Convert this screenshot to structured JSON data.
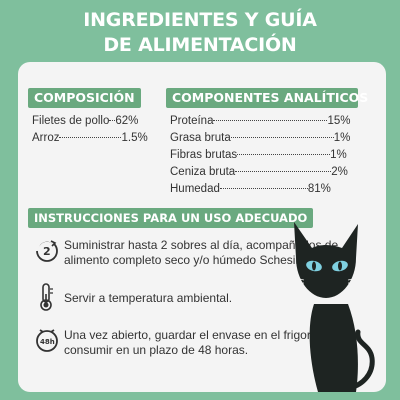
{
  "header": {
    "title_line1": "INGREDIENTES Y GUÍA",
    "title_line2": "DE ALIMENTACIÓN"
  },
  "composition": {
    "heading": "COMPOSICIÓN",
    "items": [
      {
        "name": "Filetes de pollo",
        "value": "62%"
      },
      {
        "name": "Arroz",
        "value": "1.5%"
      }
    ]
  },
  "analytical": {
    "heading": "COMPONENTES ANALÍTICOS",
    "items": [
      {
        "name": "Proteína",
        "value": "15%"
      },
      {
        "name": "Grasa bruta",
        "value": "1%"
      },
      {
        "name": "Fibras brutas",
        "value": "1%"
      },
      {
        "name": "Ceniza bruta",
        "value": "2%"
      },
      {
        "name": "Humedad",
        "value": "81%"
      }
    ]
  },
  "instructions": {
    "heading": "INSTRUCCIONES PARA UN USO ADECUADO",
    "items": [
      {
        "icon": "two-per-day-icon",
        "text": "Suministrar hasta 2 sobres al día, acompañados de alimento completo seco y/o húmedo Schesir."
      },
      {
        "icon": "thermometer-icon",
        "text": "Servir a temperatura ambiental."
      },
      {
        "icon": "48-hour-clock-icon",
        "text": "Una vez abierto, guardar el envase en el frigorífico y consumir en un plazo de 48 horas."
      }
    ]
  },
  "colors": {
    "background": "#7fbf9d",
    "card": "#f4f4f4",
    "bar": "#6aa97f",
    "cat": "#1e2422",
    "cat_eyes": "#7fd0e0"
  }
}
